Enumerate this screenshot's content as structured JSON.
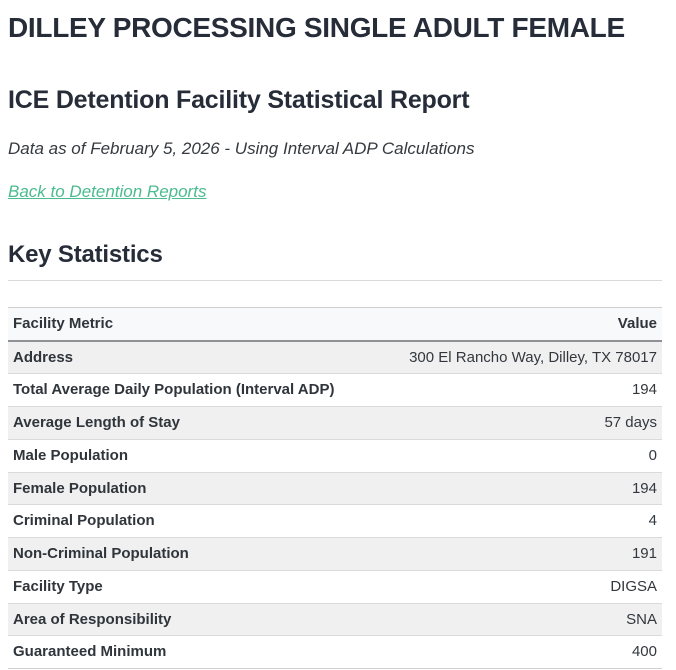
{
  "page": {
    "title": "DILLEY PROCESSING SINGLE ADULT FEMALE",
    "subtitle": "ICE Detention Facility Statistical Report",
    "data_as_of": "Data as of February 5, 2026 - Using Interval ADP Calculations",
    "back_link_label": "Back to Detention Reports",
    "section_heading": "Key Statistics"
  },
  "colors": {
    "heading_text": "#262d39",
    "body_text": "#33383e",
    "link_green": "#4cbb8f",
    "row_stripe": "#f0f0f1",
    "header_row_bg": "#f8f9fa",
    "border_light": "#d9d9d9",
    "border_dark": "#8f9194"
  },
  "table": {
    "columns": [
      "Facility Metric",
      "Value"
    ],
    "rows": [
      {
        "metric": "Address",
        "value": "300 El Rancho Way, Dilley, TX 78017"
      },
      {
        "metric": "Total Average Daily Population (Interval ADP)",
        "value": "194"
      },
      {
        "metric": "Average Length of Stay",
        "value": "57 days"
      },
      {
        "metric": "Male Population",
        "value": "0"
      },
      {
        "metric": "Female Population",
        "value": "194"
      },
      {
        "metric": "Criminal Population",
        "value": "4"
      },
      {
        "metric": "Non-Criminal Population",
        "value": "191"
      },
      {
        "metric": "Facility Type",
        "value": "DIGSA"
      },
      {
        "metric": "Area of Responsibility",
        "value": "SNA"
      },
      {
        "metric": "Guaranteed Minimum",
        "value": "400"
      }
    ]
  }
}
